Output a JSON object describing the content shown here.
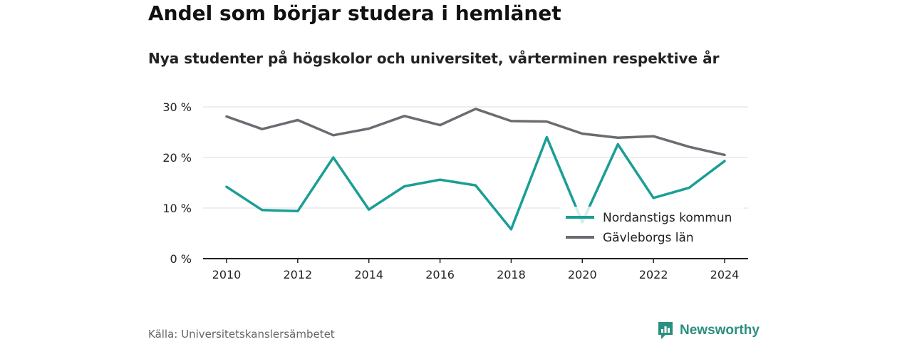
{
  "title": "Andel som börjar studera i hemlänet",
  "subtitle": "Nya studenter på högskolor och universitet, vårterminen respektive år",
  "source": "Källa: Universitetskanslersämbetet",
  "brand": {
    "name": "Newsworthy",
    "icon": "newsworthy-logo-icon",
    "color": "#2b8f7f"
  },
  "chart_data": {
    "type": "line",
    "title": "Andel som börjar studera i hemlänet",
    "subtitle": "Nya studenter på högskolor och universitet, vårterminen respektive år",
    "xlabel": "",
    "ylabel": "",
    "x": [
      2010,
      2011,
      2012,
      2013,
      2014,
      2015,
      2016,
      2017,
      2018,
      2019,
      2020,
      2021,
      2022,
      2023,
      2024
    ],
    "xticks": [
      "2010",
      "2012",
      "2014",
      "2016",
      "2018",
      "2020",
      "2022",
      "2024"
    ],
    "yticks": [
      "0 %",
      "10 %",
      "20 %",
      "30 %"
    ],
    "ylim": [
      0,
      30
    ],
    "grid": true,
    "legend_position": "bottom-right",
    "series": [
      {
        "name": "Nordanstigs kommun",
        "color": "#1a9e96",
        "values": [
          14.2,
          9.6,
          9.4,
          20.0,
          9.7,
          14.3,
          15.6,
          14.5,
          5.8,
          24.0,
          7.2,
          22.6,
          12.0,
          14.0,
          19.3
        ]
      },
      {
        "name": "Gävleborgs län",
        "color": "#6b6b72",
        "values": [
          28.1,
          25.6,
          27.4,
          24.4,
          25.7,
          28.2,
          26.4,
          29.6,
          27.2,
          27.1,
          24.7,
          23.9,
          24.2,
          22.1,
          20.5
        ]
      }
    ]
  }
}
